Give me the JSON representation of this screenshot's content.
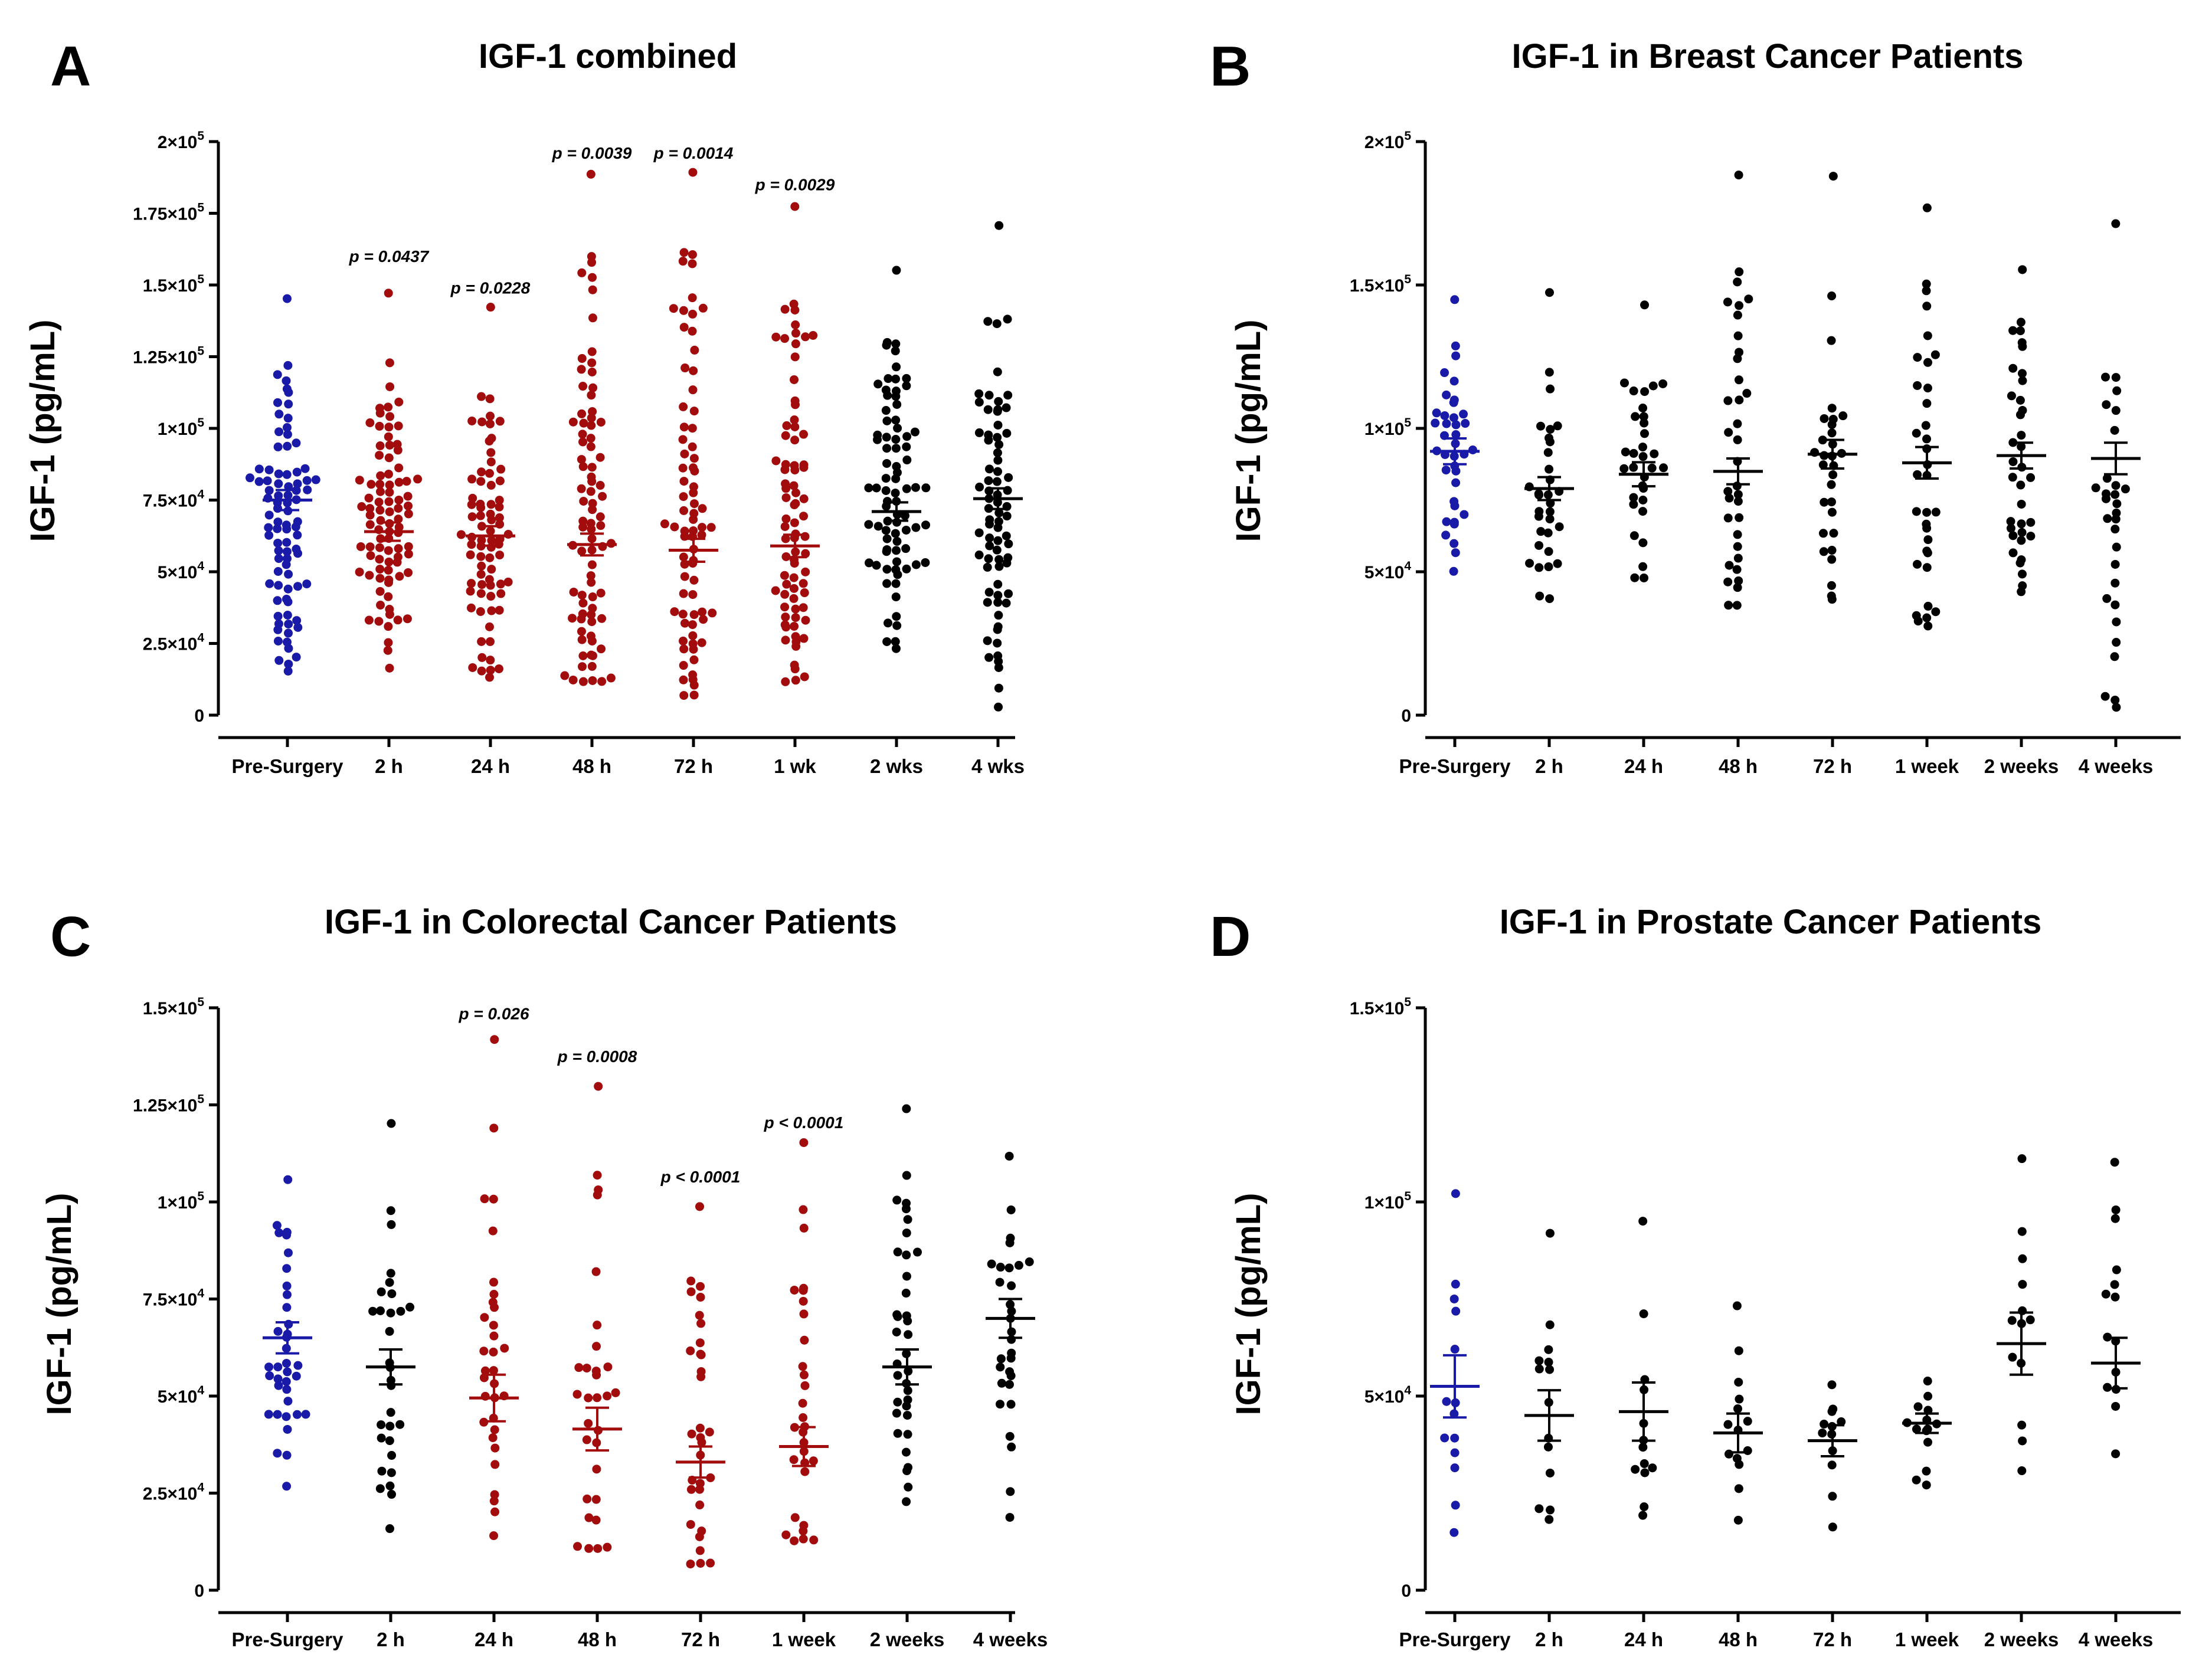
{
  "figure": {
    "ylabel": "IGF-1 (pg/mL)"
  },
  "colors": {
    "pre": "#1a1aa8",
    "sig": "#a30c0c",
    "ns": "#000000"
  },
  "chart_data": [
    {
      "panel": "A",
      "type": "scatter",
      "title": "IGF-1 combined",
      "ylabel": "IGF-1 (pg/mL)",
      "ylim": [
        0,
        200000
      ],
      "yticks": [
        0,
        25000,
        50000,
        75000,
        100000,
        125000,
        150000,
        175000,
        200000
      ],
      "ytick_labels": [
        {
          "base": "0",
          "exp": ""
        },
        {
          "base": "2.5×10",
          "exp": "4"
        },
        {
          "base": "5×10",
          "exp": "4"
        },
        {
          "base": "7.5×10",
          "exp": "4"
        },
        {
          "base": "1×10",
          "exp": "5"
        },
        {
          "base": "1.25×10",
          "exp": "5"
        },
        {
          "base": "1.5×10",
          "exp": "5"
        },
        {
          "base": "1.75×10",
          "exp": "5"
        },
        {
          "base": "2×10",
          "exp": "5"
        }
      ],
      "categories": [
        "Pre-Surgery",
        "2 h",
        "24 h",
        "48 h",
        "72 h",
        "1 wk",
        "2 wks",
        "4 wks"
      ],
      "color_group": [
        "pre",
        "sig",
        "sig",
        "sig",
        "sig",
        "sig",
        "ns",
        "ns"
      ],
      "means": [
        75000,
        64000,
        62500,
        59500,
        57500,
        59000,
        71000,
        75500
      ],
      "sems": [
        3500,
        3200,
        3400,
        3800,
        4000,
        3900,
        3200,
        3600
      ],
      "n": [
        85,
        88,
        75,
        82,
        76,
        78,
        80,
        74
      ],
      "mins": [
        15000,
        16000,
        13000,
        12000,
        7000,
        12000,
        23000,
        3000
      ],
      "maxs": [
        145000,
        147000,
        142000,
        189000,
        189000,
        177000,
        155000,
        171000
      ],
      "pvalues": [
        "",
        "p = 0.0437",
        "p = 0.0228",
        "p = 0.0039",
        "p = 0.0014",
        "p = 0.0029",
        "",
        ""
      ],
      "pvalue_y": [
        0,
        158000,
        147000,
        194000,
        194000,
        183000,
        0,
        0
      ]
    },
    {
      "panel": "B",
      "type": "scatter",
      "title": "IGF-1 in Breast Cancer Patients",
      "ylabel": "IGF-1 (pg/mL)",
      "ylim": [
        0,
        200000
      ],
      "yticks": [
        0,
        50000,
        100000,
        150000,
        200000
      ],
      "ytick_labels": [
        {
          "base": "0",
          "exp": ""
        },
        {
          "base": "5×10",
          "exp": "4"
        },
        {
          "base": "1×10",
          "exp": "5"
        },
        {
          "base": "1.5×10",
          "exp": "5"
        },
        {
          "base": "2×10",
          "exp": "5"
        }
      ],
      "categories": [
        "Pre-Surgery",
        "2 h",
        "24 h",
        "48 h",
        "72 h",
        "1 week",
        "2 weeks",
        "4 weeks"
      ],
      "color_group": [
        "pre",
        "ns",
        "ns",
        "ns",
        "ns",
        "ns",
        "ns",
        "ns"
      ],
      "means": [
        92000,
        79000,
        84000,
        85000,
        91000,
        88000,
        90500,
        89500
      ],
      "sems": [
        4500,
        4000,
        4200,
        4500,
        5000,
        5500,
        4500,
        5500
      ],
      "n": [
        38,
        32,
        32,
        35,
        30,
        34,
        36,
        30
      ],
      "mins": [
        50000,
        41000,
        48000,
        38000,
        40000,
        31000,
        43000,
        3000
      ],
      "maxs": [
        145000,
        147000,
        143000,
        188000,
        188000,
        177000,
        155000,
        171000
      ],
      "pvalues": [
        "",
        "",
        "",
        "",
        "",
        "",
        "",
        ""
      ],
      "pvalue_y": [
        0,
        0,
        0,
        0,
        0,
        0,
        0,
        0
      ]
    },
    {
      "panel": "C",
      "type": "scatter",
      "title": "IGF-1 in Colorectal Cancer Patients",
      "ylabel": "IGF-1 (pg/mL)",
      "ylim": [
        0,
        150000
      ],
      "yticks": [
        0,
        25000,
        50000,
        75000,
        100000,
        125000,
        150000
      ],
      "ytick_labels": [
        {
          "base": "0",
          "exp": ""
        },
        {
          "base": "2.5×10",
          "exp": "4"
        },
        {
          "base": "5×10",
          "exp": "4"
        },
        {
          "base": "7.5×10",
          "exp": "4"
        },
        {
          "base": "1×10",
          "exp": "5"
        },
        {
          "base": "1.25×10",
          "exp": "5"
        },
        {
          "base": "1.5×10",
          "exp": "5"
        }
      ],
      "categories": [
        "Pre-Surgery",
        "2 h",
        "24 h",
        "48 h",
        "72 h",
        "1 week",
        "2 weeks",
        "4 weeks"
      ],
      "color_group": [
        "pre",
        "ns",
        "sig",
        "sig",
        "sig",
        "sig",
        "ns",
        "ns"
      ],
      "means": [
        65000,
        57500,
        49500,
        41500,
        33000,
        37000,
        57500,
        70000
      ],
      "sems": [
        4000,
        4500,
        6000,
        5500,
        4000,
        5000,
        4500,
        5000
      ],
      "n": [
        36,
        30,
        32,
        30,
        32,
        30,
        36,
        30
      ],
      "mins": [
        27000,
        16000,
        14000,
        11000,
        7000,
        13000,
        23000,
        19000
      ],
      "maxs": [
        106000,
        120000,
        142000,
        130000,
        99000,
        115000,
        124000,
        112000
      ],
      "pvalues": [
        "",
        "",
        "p = 0.026",
        "p = 0.0008",
        "p < 0.0001",
        "p < 0.0001",
        "",
        ""
      ],
      "pvalue_y": [
        0,
        0,
        147000,
        136000,
        105000,
        119000,
        0,
        0
      ]
    },
    {
      "panel": "D",
      "type": "scatter",
      "title": "IGF-1 in Prostate Cancer Patients",
      "ylabel": "IGF-1 (pg/mL)",
      "ylim": [
        0,
        150000
      ],
      "yticks": [
        0,
        50000,
        100000,
        150000
      ],
      "ytick_labels": [
        {
          "base": "0",
          "exp": ""
        },
        {
          "base": "5×10",
          "exp": "4"
        },
        {
          "base": "1×10",
          "exp": "5"
        },
        {
          "base": "1.5×10",
          "exp": "5"
        }
      ],
      "categories": [
        "Pre-Surgery",
        "2 h",
        "24 h",
        "48 h",
        "72 h",
        "1 week",
        "2 weeks",
        "4 weeks"
      ],
      "color_group": [
        "pre",
        "ns",
        "ns",
        "ns",
        "ns",
        "ns",
        "ns",
        "ns"
      ],
      "means": [
        52500,
        45000,
        46000,
        40500,
        38500,
        43000,
        63500,
        58500
      ],
      "sems": [
        8000,
        6500,
        7500,
        5000,
        4000,
        2500,
        8000,
        6500
      ],
      "n": [
        14,
        14,
        13,
        14,
        12,
        14,
        13,
        14
      ],
      "mins": [
        15000,
        18000,
        19000,
        18000,
        16000,
        27000,
        31000,
        35000
      ],
      "maxs": [
        102000,
        92000,
        95000,
        73000,
        53000,
        54000,
        111000,
        110000
      ],
      "pvalues": [
        "",
        "",
        "",
        "",
        "",
        "",
        "",
        ""
      ],
      "pvalue_y": [
        0,
        0,
        0,
        0,
        0,
        0,
        0,
        0
      ]
    }
  ]
}
